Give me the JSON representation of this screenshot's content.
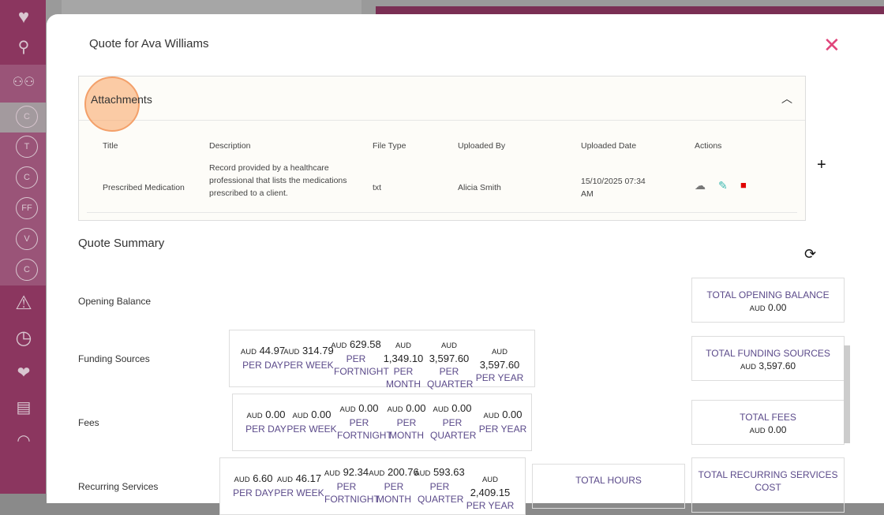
{
  "sidebar": {
    "items": [
      {
        "icon": "heart-icon"
      },
      {
        "icon": "search-icon"
      },
      {
        "icon": "people-icon"
      },
      {
        "label": "C"
      },
      {
        "label": "T"
      },
      {
        "label": "C"
      },
      {
        "label": "FF"
      },
      {
        "label": "V"
      },
      {
        "label": "C"
      },
      {
        "icon": "warning-icon"
      },
      {
        "icon": "clock-icon"
      },
      {
        "icon": "hearts-icon"
      },
      {
        "icon": "chat-icon"
      },
      {
        "icon": "gauge-icon"
      }
    ]
  },
  "modal": {
    "title": "Quote for Ava Williams",
    "close": "✕"
  },
  "attachments": {
    "title": "Attachments",
    "columns": [
      "Title",
      "Description",
      "File Type",
      "Uploaded By",
      "Uploaded Date",
      "Actions"
    ],
    "rows": [
      {
        "title": "Prescribed Medication",
        "description": "Record provided by a healthcare professional that lists the medications prescribed to a client.",
        "file_type": "txt",
        "uploaded_by": "Alicia Smith",
        "uploaded_date": "15/10/2025 07:34 AM"
      }
    ]
  },
  "summary": {
    "title": "Quote Summary",
    "opening_balance": {
      "label": "Opening Balance",
      "total_label": "TOTAL OPENING BALANCE",
      "total": "0.00"
    },
    "funding": {
      "label": "Funding Sources",
      "values": [
        "44.97",
        "314.79",
        "629.58",
        "1,349.10",
        "3,597.60",
        "3,597.60"
      ],
      "total_label": "TOTAL FUNDING SOURCES",
      "total": "3,597.60"
    },
    "fees": {
      "label": "Fees",
      "values": [
        "0.00",
        "0.00",
        "0.00",
        "0.00",
        "0.00",
        "0.00"
      ],
      "total_label": "TOTAL FEES",
      "total": "0.00"
    },
    "recurring": {
      "label": "Recurring Services",
      "values": [
        "6.60",
        "46.17",
        "92.34",
        "200.76",
        "593.63",
        "2,409.15"
      ],
      "hours_label": "TOTAL HOURS",
      "total_label": "TOTAL RECURRING SERVICES COST"
    },
    "currency": "AUD",
    "periods": [
      "PER DAY",
      "PER WEEK",
      "PER FORTNIGHT",
      "PER MONTH",
      "PER QUARTER",
      "PER YEAR"
    ]
  },
  "colors": {
    "accent": "#e0457b",
    "sidebar": "#8b365f",
    "period": "#5b4a8a",
    "edit": "#3bb8b0",
    "delete": "#e00000"
  }
}
